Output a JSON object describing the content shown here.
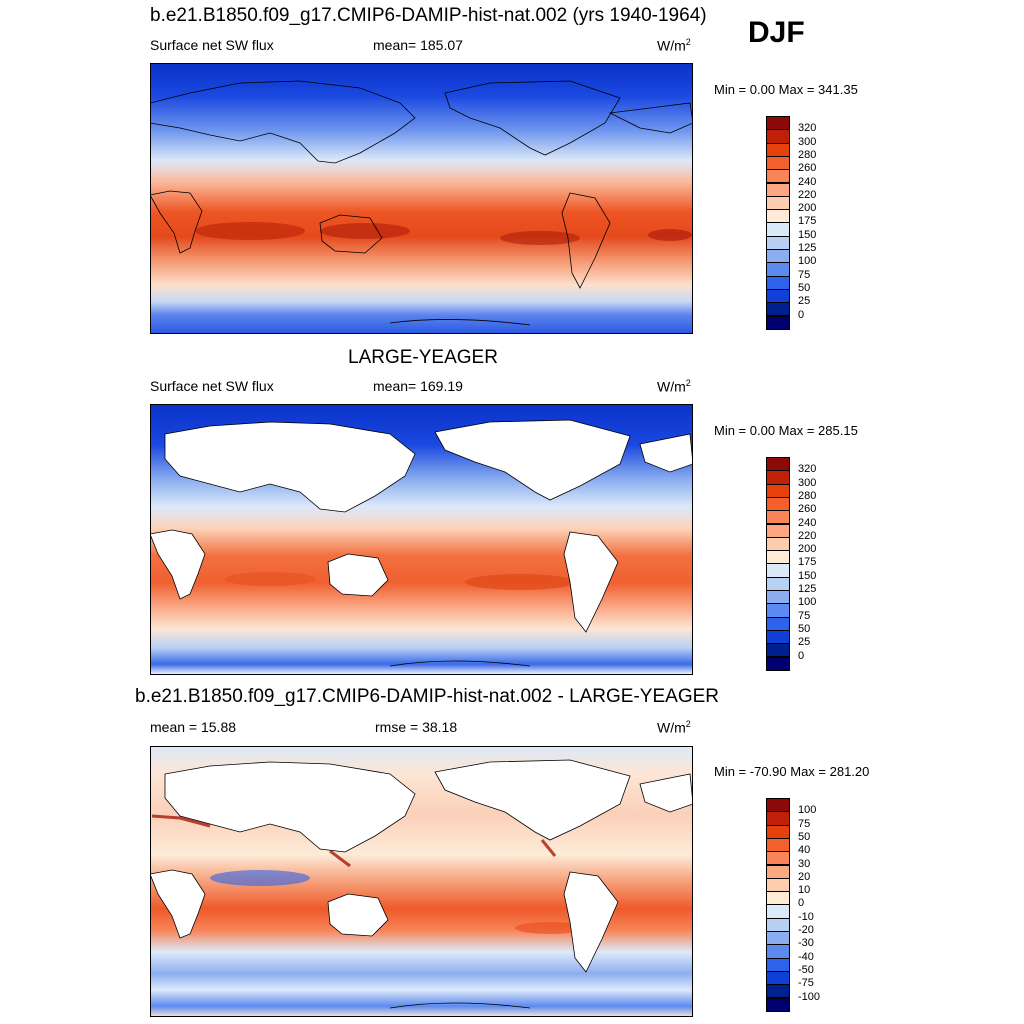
{
  "season": "DJF",
  "units_label": "W/m",
  "units_sup": "2",
  "panels": [
    {
      "title": "b.e21.B1850.f09_g17.CMIP6-DAMIP-hist-nat.002 (yrs 1940-1964)",
      "left_label": "Surface net SW flux",
      "center_label": "mean= 185.07",
      "minmax": "Min =   0.00 Max = 341.35",
      "colorbar_labels": [
        "320",
        "300",
        "280",
        "260",
        "240",
        "220",
        "200",
        "175",
        "150",
        "125",
        "100",
        "75",
        "50",
        "25",
        "0"
      ],
      "colorbar_colors": [
        "#8c0a0a",
        "#c0200a",
        "#e8400c",
        "#f4602c",
        "#f88458",
        "#fba882",
        "#fdcdb0",
        "#fdebd8",
        "#dce9f8",
        "#b8d0f4",
        "#8caef0",
        "#5c8af0",
        "#2e62ea",
        "#1040d8",
        "#002090",
        "#000070"
      ]
    },
    {
      "title": "LARGE-YEAGER",
      "left_label": "Surface net SW flux",
      "center_label": "mean= 169.19",
      "minmax": "Min =   0.00 Max = 285.15",
      "colorbar_labels": [
        "320",
        "300",
        "280",
        "260",
        "240",
        "220",
        "200",
        "175",
        "150",
        "125",
        "100",
        "75",
        "50",
        "25",
        "0"
      ],
      "colorbar_colors": [
        "#8c0a0a",
        "#c0200a",
        "#e8400c",
        "#f4602c",
        "#f88458",
        "#fba882",
        "#fdcdb0",
        "#fdebd8",
        "#dce9f8",
        "#b8d0f4",
        "#8caef0",
        "#5c8af0",
        "#2e62ea",
        "#1040d8",
        "#002090",
        "#000070"
      ]
    },
    {
      "title": "b.e21.B1850.f09_g17.CMIP6-DAMIP-hist-nat.002 - LARGE-YEAGER",
      "left_label": "mean =  15.88",
      "center_label": "rmse =  38.18",
      "minmax": "Min = -70.90 Max = 281.20",
      "colorbar_labels": [
        "100",
        "75",
        "50",
        "40",
        "30",
        "20",
        "10",
        "0",
        "-10",
        "-20",
        "-30",
        "-40",
        "-50",
        "-75",
        "-100"
      ],
      "colorbar_colors": [
        "#8c0a0a",
        "#c0200a",
        "#e8400c",
        "#f4602c",
        "#f88458",
        "#fba882",
        "#fdcdb0",
        "#fdebd8",
        "#dce9f8",
        "#b8d0f4",
        "#8caef0",
        "#5c8af0",
        "#2e62ea",
        "#1040d8",
        "#002090",
        "#000070"
      ]
    }
  ]
}
